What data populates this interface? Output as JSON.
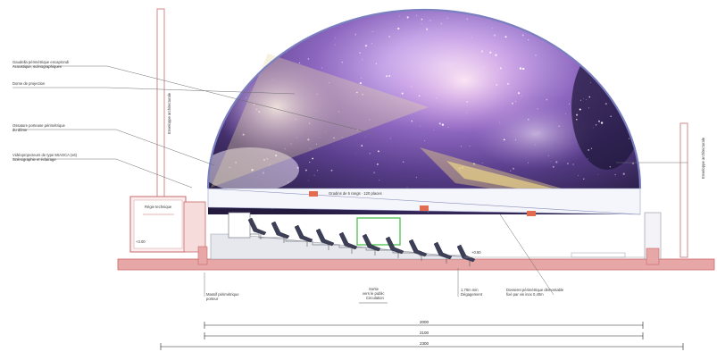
{
  "title": "",
  "annotations_left": [
    {
      "line1": "Gaudella périmétrique encaprondi",
      "line2": "Acoustique, scénographiques"
    },
    {
      "line1": "Dome de projection",
      "line2": ""
    },
    {
      "line1": "Ossature porteuse périmétrique",
      "line2": "du dôme"
    },
    {
      "line1": "Vidéoprojecteurs de type MIAOCA (x6)",
      "line2": "Scénographie et éclairage"
    }
  ],
  "annotations_right": [
    {
      "line1": "Enveloppe architecturale",
      "line2": ""
    }
  ],
  "annotation_left_vertical": {
    "text": "Enveloppe architecturale"
  },
  "small_labels": {
    "seat_rows": "Gradins de 5 rangs · 120 places",
    "left_room": "Régie technique",
    "left_height": "+3.00",
    "right_height": "+0.80"
  },
  "bottom_annotations": [
    {
      "line1": "Massif périmétrique",
      "line2": "porteur"
    },
    {
      "line1": "Sortie",
      "line2": "vers le public",
      "line3": "Circulation"
    },
    {
      "line1": "1,70m min",
      "line2": "Dégagement"
    },
    {
      "line1": "Dosseret périmétrique démontable",
      "line2": "fixé par vis inox 0,40m"
    }
  ],
  "dimensions": [
    {
      "value": "2000"
    },
    {
      "value": "2100"
    },
    {
      "value": "2300"
    }
  ],
  "colors": {
    "structure_pink": "#e8a7a7",
    "structure_outline": "#c96a6a",
    "dome_outline": "#7a7fc0",
    "beam": "#e9d8a6",
    "highlight_green": "#4cbf4c",
    "seat": "#3c3f57"
  }
}
